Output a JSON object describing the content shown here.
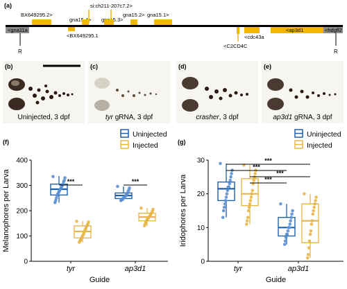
{
  "panel_a": {
    "letter": "(a)",
    "upper_genes": [
      "BX649295.2>",
      "gna15.4>",
      "si:ch211-207c7.2>",
      "gna15.3>",
      "gna15.2>",
      "gna15.1>"
    ],
    "lower_genes": [
      "<gna11a",
      "<BX649295.1",
      "<C2CD4C",
      "<cdc43a",
      "<ap3d1",
      "<hdgfl2"
    ],
    "marker_left": "R",
    "marker_right": "R",
    "colors": {
      "gene": "#f2b705",
      "flank": "#8c8c8c",
      "line": "#000000"
    }
  },
  "photos": [
    {
      "letter": "(b)",
      "label": "Uninjected, 3 dpf"
    },
    {
      "letter": "(c)",
      "label_em": "tyr",
      "label_rest": " gRNA, 3 dpf"
    },
    {
      "letter": "(d)",
      "label_em": "crasher",
      "label_rest": ", 3 dpf"
    },
    {
      "letter": "(e)",
      "label_em": "ap3d1",
      "label_rest": " gRNA, 3 dpf"
    }
  ],
  "legend": {
    "uninjected": "Uninjected",
    "injected": "Injected"
  },
  "colors": {
    "uninjected": "#1f5fa8",
    "uninjected_point": "#5b8fd1",
    "injected": "#e8b647",
    "injected_point": "#e8b647"
  },
  "chart_data": [
    {
      "letter": "(f)",
      "type": "box",
      "xlabel": "Guide",
      "ylabel": "Melanophores per Larva",
      "categories": [
        "tyr",
        "ap3d1"
      ],
      "ylim": [
        0,
        400
      ],
      "yticks": [
        0,
        100,
        200,
        300,
        400
      ],
      "significance": [
        {
          "category": "tyr",
          "label": "***"
        },
        {
          "category": "ap3d1",
          "label": "***"
        }
      ],
      "series": [
        {
          "name": "Uninjected",
          "boxes": [
            {
              "category": "tyr",
              "min": 232,
              "q1": 262,
              "median": 285,
              "q3": 305,
              "max": 337
            },
            {
              "category": "ap3d1",
              "min": 240,
              "q1": 248,
              "median": 260,
              "q3": 270,
              "max": 296
            }
          ]
        },
        {
          "name": "Injected",
          "boxes": [
            {
              "category": "tyr",
              "min": 75,
              "q1": 92,
              "median": 118,
              "q3": 140,
              "max": 158
            },
            {
              "category": "ap3d1",
              "min": 140,
              "q1": 160,
              "median": 175,
              "q3": 190,
              "max": 210
            }
          ]
        }
      ],
      "points": [
        {
          "category": "tyr",
          "series": "Uninjected",
          "values": [
            335,
            330,
            320,
            315,
            305,
            300,
            295,
            290,
            285,
            280,
            275,
            270,
            265,
            260,
            250,
            240,
            232
          ]
        },
        {
          "category": "tyr",
          "series": "Injected",
          "values": [
            158,
            155,
            148,
            142,
            138,
            130,
            125,
            118,
            112,
            105,
            100,
            95,
            90,
            85,
            80,
            75
          ]
        },
        {
          "category": "ap3d1",
          "series": "Uninjected",
          "values": [
            296,
            290,
            282,
            276,
            270,
            266,
            262,
            258,
            255,
            252,
            250,
            248,
            245,
            242,
            240
          ]
        },
        {
          "category": "ap3d1",
          "series": "Injected",
          "values": [
            210,
            205,
            198,
            192,
            188,
            183,
            178,
            175,
            172,
            168,
            165,
            160,
            155,
            148,
            140
          ]
        }
      ]
    },
    {
      "letter": "(g)",
      "type": "box",
      "xlabel": "Guide",
      "ylabel": "Iridophores per Larva",
      "categories": [
        "tyr",
        "ap3d1"
      ],
      "ylim": [
        0,
        30
      ],
      "yticks": [
        0,
        10,
        20,
        30
      ],
      "significance": [
        {
          "label": "***",
          "level": 1
        },
        {
          "label": "***",
          "level": 2
        },
        {
          "label": "***",
          "level": 3
        },
        {
          "label": "***",
          "level": 4
        }
      ],
      "series": [
        {
          "name": "Uninjected",
          "boxes": [
            {
              "category": "tyr",
              "min": 13,
              "q1": 18,
              "median": 21.5,
              "q3": 23.5,
              "max": 29
            },
            {
              "category": "ap3d1",
              "min": 5,
              "q1": 7.5,
              "median": 10,
              "q3": 13,
              "max": 17
            }
          ]
        },
        {
          "name": "Injected",
          "boxes": [
            {
              "category": "tyr",
              "min": 11,
              "q1": 16.5,
              "median": 20,
              "q3": 24.5,
              "max": 28.5
            },
            {
              "category": "ap3d1",
              "min": 1,
              "q1": 5.5,
              "median": 12,
              "q3": 17,
              "max": 20
            }
          ]
        }
      ],
      "points": [
        {
          "category": "tyr",
          "series": "Uninjected",
          "values": [
            29,
            27,
            26,
            25,
            24,
            23,
            22,
            22,
            21,
            20,
            19,
            18,
            17,
            16,
            15,
            13
          ]
        },
        {
          "category": "tyr",
          "series": "Injected",
          "values": [
            28.5,
            27,
            26,
            25,
            24,
            23,
            21,
            20,
            19,
            18,
            17,
            16,
            15,
            13,
            12,
            11
          ]
        },
        {
          "category": "ap3d1",
          "series": "Uninjected",
          "values": [
            17,
            15,
            14,
            13,
            12,
            11,
            10,
            10,
            9,
            8,
            8,
            7,
            6,
            5
          ]
        },
        {
          "category": "ap3d1",
          "series": "Injected",
          "values": [
            20,
            19,
            18,
            17,
            16,
            15,
            14,
            12,
            11,
            9,
            8,
            6,
            4,
            2,
            1
          ]
        }
      ]
    }
  ]
}
